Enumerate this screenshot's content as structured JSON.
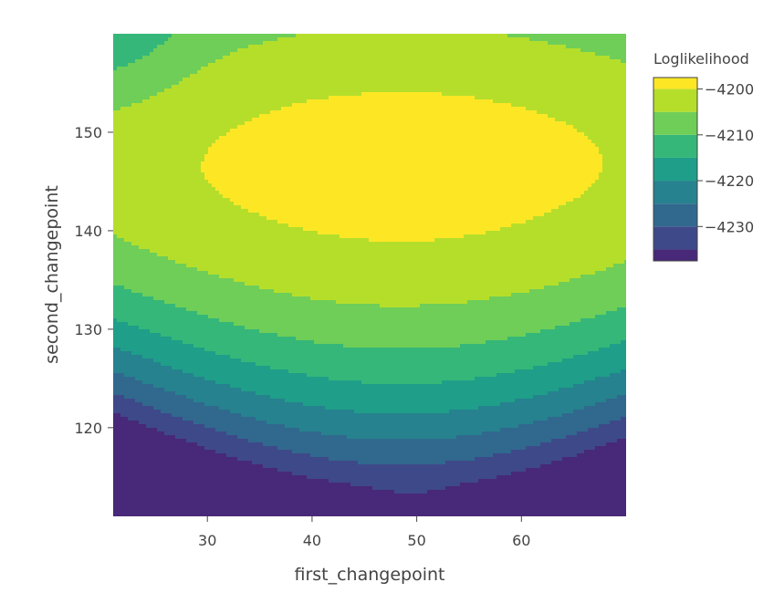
{
  "chart_data": {
    "type": "contour",
    "title": "",
    "xlabel": "first_changepoint",
    "ylabel": "second_changepoint",
    "x_range": [
      21,
      70
    ],
    "y_range": [
      111,
      160
    ],
    "x_ticks": [
      30,
      40,
      50,
      60
    ],
    "y_ticks": [
      120,
      130,
      140,
      150
    ],
    "colorbar": {
      "title": "Loglikelihood",
      "ticks": [
        -4200,
        -4210,
        -4220,
        -4230
      ],
      "tick_labels": [
        "−4200",
        "−4210",
        "−4220",
        "−4230"
      ],
      "contour_levels": [
        -4235,
        -4230,
        -4225,
        -4220,
        -4215,
        -4210,
        -4205,
        -4200
      ],
      "range": [
        -4237.5,
        -4197.5
      ],
      "colorscale": [
        "#440154",
        "#482878",
        "#3e4989",
        "#31688e",
        "#26828e",
        "#1f9e89",
        "#35b779",
        "#6ece58",
        "#b5de2b",
        "#fde725"
      ]
    },
    "surface_model": {
      "peak": {
        "first_changepoint": 48.5,
        "second_changepoint": 146.5,
        "value": -4198
      },
      "note_units": "loglikelihood"
    },
    "grid": false
  }
}
